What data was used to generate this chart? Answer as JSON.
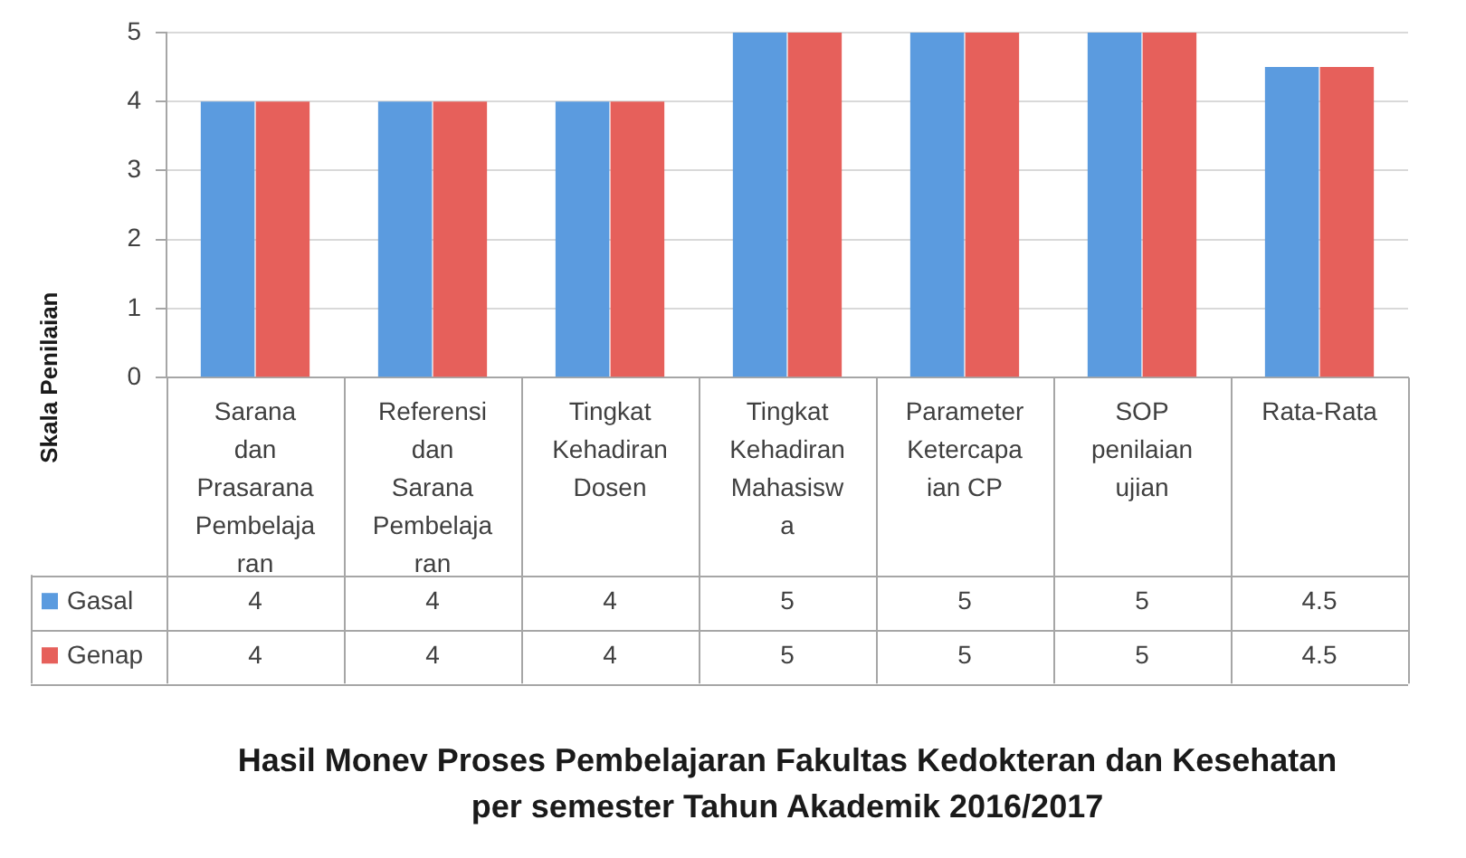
{
  "chart_data": {
    "type": "bar",
    "title": "Hasil Monev Proses Pembelajaran Fakultas Kedokteran dan Kesehatan per semester Tahun Akademik 2016/2017",
    "ylabel": "Skala Penilaian",
    "categories": [
      "Sarana dan Prasarana Pembelajaran",
      "Referensi dan Sarana Pembelajaran",
      "Tingkat Kehadiran Dosen",
      "Tingkat Kehadiran Mahasiswa",
      "Parameter Ketercapaian CP",
      "SOP penilaian ujian",
      "Rata-Rata"
    ],
    "series": [
      {
        "name": "Gasal",
        "color": "#5b9bdf",
        "values": [
          4,
          4,
          4,
          5,
          5,
          5,
          4.5
        ]
      },
      {
        "name": "Genap",
        "color": "#e6605b",
        "values": [
          4,
          4,
          4,
          5,
          5,
          5,
          4.5
        ]
      }
    ],
    "ylim": [
      0,
      5
    ],
    "yticks": [
      0,
      1,
      2,
      3,
      4,
      5
    ],
    "grid": "y",
    "legend": "bottom left",
    "data_labels": true
  }
}
